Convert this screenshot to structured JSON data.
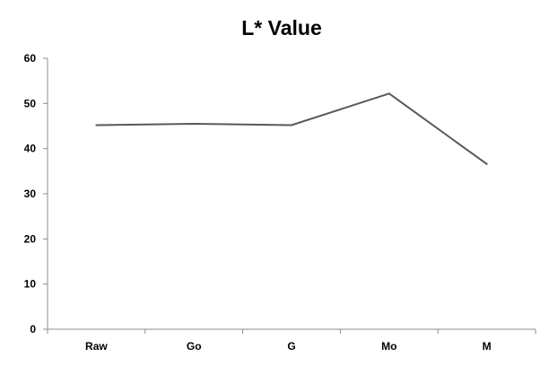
{
  "chart_data": {
    "type": "line",
    "title": "L* Value",
    "xlabel": "",
    "ylabel": "",
    "categories": [
      "Raw",
      "Go",
      "G",
      "Mo",
      "M"
    ],
    "series": [
      {
        "values": [
          45.2,
          45.5,
          45.2,
          52.2,
          36.6
        ],
        "color": "#595959"
      }
    ],
    "ylim": [
      0,
      60
    ],
    "yticks": [
      "0",
      "10",
      "20",
      "30",
      "40",
      "50",
      "60"
    ],
    "grid": false,
    "legend": "none"
  }
}
